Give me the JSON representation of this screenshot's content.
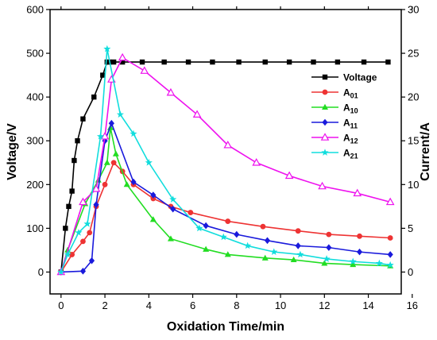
{
  "chart_data": {
    "type": "line",
    "xlabel": "Oxidation Time/min",
    "ylabel_left": "Voltage/V",
    "ylabel_right": "Current/A",
    "xlim": [
      -0.5,
      15.5
    ],
    "ylim_left": [
      -50,
      600
    ],
    "ylim_right": [
      -2.5,
      30
    ],
    "x_ticks": [
      0,
      2,
      4,
      6,
      8,
      10,
      12,
      14,
      16
    ],
    "y_left_ticks": [
      0,
      100,
      200,
      300,
      400,
      500,
      600
    ],
    "y_right_ticks": [
      0,
      5,
      10,
      15,
      20,
      25,
      30
    ],
    "grid": false,
    "legend_position": "right",
    "series": [
      {
        "name": "Voltage",
        "label_main": "Voltage",
        "label_sub": "",
        "axis": "left",
        "color": "#000000",
        "marker": "square",
        "x": [
          0,
          0.2,
          0.35,
          0.5,
          0.6,
          0.75,
          1.0,
          1.5,
          1.9,
          2.1,
          2.2,
          2.4,
          2.8,
          3.7,
          4.7,
          5.8,
          6.9,
          8.1,
          9.3,
          10.4,
          11.5,
          12.6,
          13.8,
          14.9
        ],
        "y": [
          0,
          100,
          150,
          185,
          255,
          300,
          350,
          400,
          450,
          480,
          480,
          480,
          480,
          480,
          480,
          480,
          480,
          480,
          480,
          480,
          480,
          480,
          480,
          480
        ]
      },
      {
        "name": "A01",
        "label_main": "A",
        "label_sub": "01",
        "axis": "right",
        "color": "#ee3333",
        "marker": "circle",
        "x": [
          0,
          0.5,
          1.0,
          1.3,
          1.6,
          2.0,
          2.4,
          2.8,
          3.3,
          4.2,
          5.0,
          5.9,
          7.6,
          9.2,
          10.8,
          12.2,
          13.6,
          15.0
        ],
        "y": [
          0,
          2.0,
          3.5,
          4.5,
          7.5,
          10.0,
          12.5,
          11.5,
          10.0,
          8.4,
          7.5,
          6.8,
          5.8,
          5.2,
          4.7,
          4.3,
          4.1,
          3.9
        ]
      },
      {
        "name": "A10",
        "label_main": "A",
        "label_sub": "10",
        "axis": "right",
        "color": "#22dd22",
        "marker": "triangle",
        "x": [
          0,
          0.3,
          1.1,
          1.7,
          2.1,
          2.25,
          2.5,
          3.0,
          4.2,
          5.0,
          6.6,
          7.6,
          9.3,
          10.6,
          12.0,
          13.3,
          15.0
        ],
        "y": [
          0,
          2.5,
          7.8,
          10.5,
          12.5,
          16.5,
          13.5,
          10.0,
          6.0,
          3.8,
          2.6,
          2.0,
          1.6,
          1.4,
          1.0,
          0.85,
          0.7
        ]
      },
      {
        "name": "A11",
        "label_main": "A",
        "label_sub": "11",
        "axis": "right",
        "color": "#1a1adc",
        "marker": "diamond",
        "x": [
          0,
          1.0,
          1.4,
          1.6,
          2.0,
          2.3,
          3.3,
          4.2,
          5.1,
          6.6,
          8.0,
          9.4,
          10.8,
          12.2,
          13.6,
          15.0
        ],
        "y": [
          0,
          0.1,
          1.3,
          7.7,
          15.0,
          17.0,
          10.3,
          8.8,
          7.2,
          5.3,
          4.3,
          3.6,
          3.0,
          2.8,
          2.3,
          2.0
        ]
      },
      {
        "name": "A12",
        "label_main": "A",
        "label_sub": "12",
        "axis": "right",
        "color": "#ee11ee",
        "marker": "open-triangle",
        "x": [
          0,
          1.0,
          1.6,
          2.0,
          2.3,
          2.8,
          3.8,
          5.0,
          6.2,
          7.6,
          8.9,
          10.4,
          11.9,
          13.5,
          15.0
        ],
        "y": [
          0,
          8.0,
          9.5,
          15.5,
          22.0,
          24.5,
          23.0,
          20.5,
          18.0,
          14.5,
          12.5,
          11.0,
          9.8,
          9.0,
          8.0
        ]
      },
      {
        "name": "A21",
        "label_main": "A",
        "label_sub": "21",
        "axis": "right",
        "color": "#11dddd",
        "marker": "star",
        "x": [
          0,
          0.3,
          0.8,
          1.2,
          1.8,
          2.1,
          2.7,
          3.3,
          4.0,
          5.1,
          6.3,
          7.4,
          8.5,
          9.7,
          10.9,
          12.1,
          13.3,
          14.5,
          15.0
        ],
        "y": [
          0,
          2.0,
          4.5,
          5.5,
          15.5,
          25.5,
          18.0,
          15.8,
          12.5,
          8.3,
          5.0,
          4.0,
          3.0,
          2.3,
          2.0,
          1.5,
          1.2,
          1.0,
          0.8
        ]
      }
    ]
  }
}
